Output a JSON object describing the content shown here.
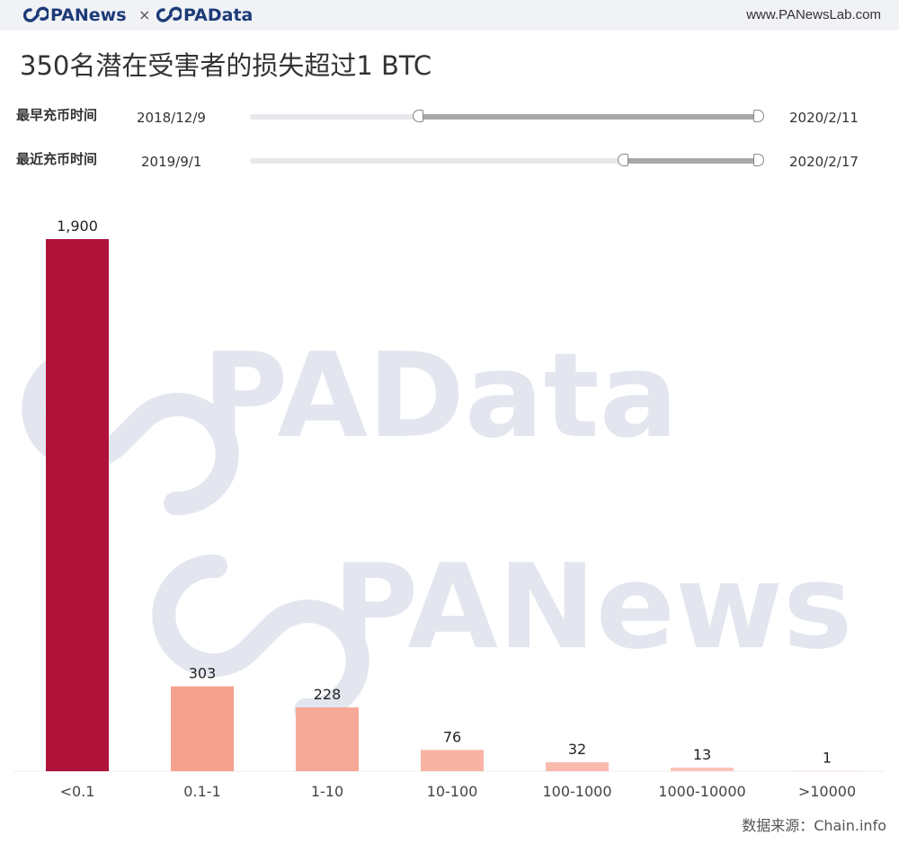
{
  "header": {
    "brand_left": "PANews",
    "brand_separator": "×",
    "brand_right": "PAData",
    "url": "www.PANewsLab.com"
  },
  "filters": [
    {
      "label": "最早充币时间",
      "start": "2018/12/9",
      "end": "2020/2/11",
      "selected_from_fraction": 0.33
    },
    {
      "label": "最近充币时间",
      "start": "2019/9/1",
      "end": "2020/2/17",
      "selected_from_fraction": 0.73
    }
  ],
  "watermarks": [
    "PAData",
    "PANews"
  ],
  "source": "数据来源：Chain.info",
  "colors": {
    "highlight_bar": "#b01239",
    "bar_0_1_1": "#f6a190",
    "bar_1_10": "#f7a998",
    "bar_10_100": "#f8b3a4",
    "bar_100_1000": "#f9baad",
    "bar_1000_10000": "#fbc5b9",
    "bar_gt_10000": "#fcd2c8",
    "watermark": "#e3e6ef"
  },
  "chart_data": {
    "type": "bar",
    "title": "350名潜在受害者的损失超过1 BTC",
    "xlabel": "",
    "ylabel": "",
    "categories": [
      "<0.1",
      "0.1-1",
      "1-10",
      "10-100",
      "100-1000",
      "1000-10000",
      ">10000"
    ],
    "values": [
      1900,
      303,
      228,
      76,
      32,
      13,
      1
    ],
    "value_labels": [
      "1,900",
      "303",
      "228",
      "76",
      "32",
      "13",
      "1"
    ],
    "ylim": [
      0,
      1900
    ],
    "grid": false,
    "legend": "none"
  }
}
